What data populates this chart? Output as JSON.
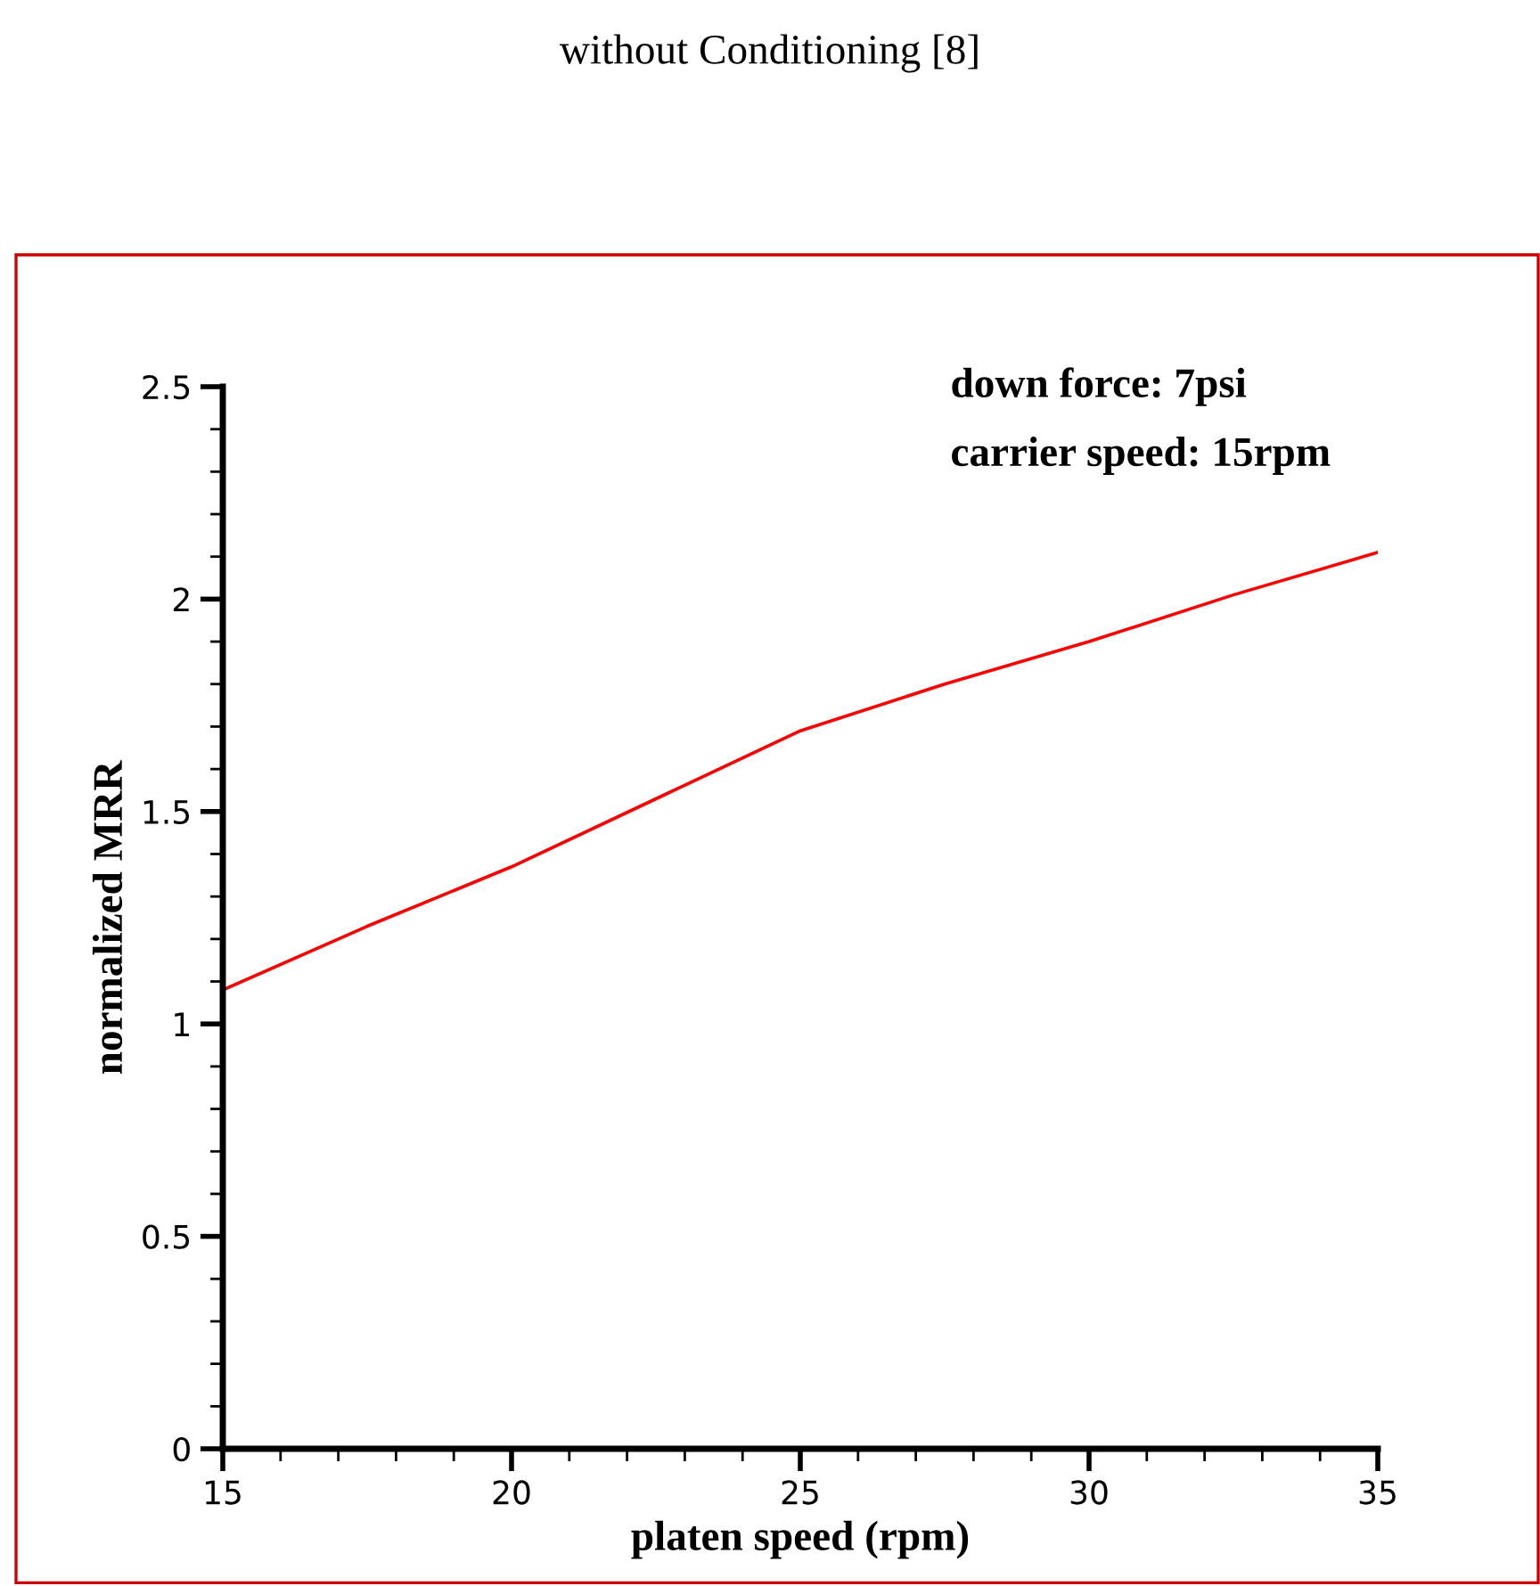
{
  "chart_data": {
    "type": "line",
    "title": "without Conditioning [8]",
    "xlabel": "platen speed (rpm)",
    "ylabel": "normalized MRR",
    "annotations": [
      "down force: 7psi",
      "carrier speed: 15rpm"
    ],
    "x": [
      15,
      17.5,
      20,
      22.5,
      25,
      27.5,
      30,
      32.5,
      35
    ],
    "series": [
      {
        "color": "#ff0000",
        "values": [
          1.08,
          1.23,
          1.37,
          1.53,
          1.69,
          1.8,
          1.9,
          2.01,
          2.11
        ]
      }
    ],
    "xlim": [
      15,
      35
    ],
    "ylim": [
      0,
      2.5
    ],
    "xticks": [
      15,
      20,
      25,
      30,
      35
    ],
    "yticks": [
      0,
      0.5,
      1,
      1.5,
      2,
      2.5
    ],
    "grid": false,
    "legend": false,
    "marker": "none",
    "line_style": "solid"
  }
}
